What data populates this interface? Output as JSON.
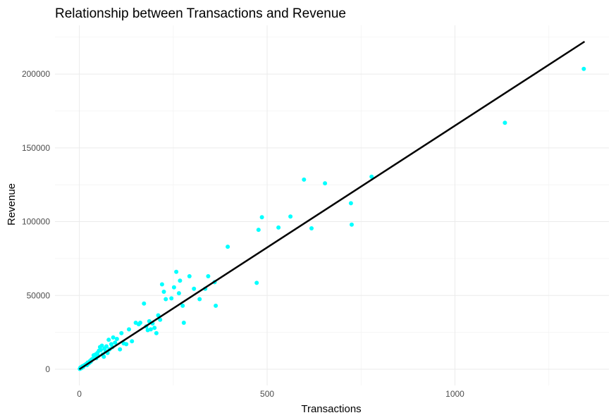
{
  "chart_data": {
    "type": "scatter",
    "title": "Relationship between Transactions and Revenue",
    "xlabel": "Transactions",
    "ylabel": "Revenue",
    "xlim": [
      -65,
      1410
    ],
    "ylim": [
      -11000,
      233000
    ],
    "x_ticks": [
      0,
      500,
      1000
    ],
    "y_ticks": [
      0,
      50000,
      100000,
      150000,
      200000
    ],
    "x_tick_labels": [
      "0",
      "500",
      "1000"
    ],
    "y_tick_labels": [
      "0",
      "50000",
      "100000",
      "150000",
      "200000"
    ],
    "grid": true,
    "legend": "none",
    "point_color": "#00ffff",
    "line_color": "#000000",
    "fit_line": {
      "x": [
        0,
        1345
      ],
      "y": [
        0,
        222000
      ]
    },
    "points": [
      {
        "x": 1,
        "y": 200
      },
      {
        "x": 3,
        "y": 1200
      },
      {
        "x": 5,
        "y": 700
      },
      {
        "x": 8,
        "y": 2000
      },
      {
        "x": 10,
        "y": 1500
      },
      {
        "x": 12,
        "y": 2500
      },
      {
        "x": 15,
        "y": 3000
      },
      {
        "x": 18,
        "y": 3500
      },
      {
        "x": 20,
        "y": 2800
      },
      {
        "x": 22,
        "y": 4500
      },
      {
        "x": 25,
        "y": 4000
      },
      {
        "x": 28,
        "y": 5500
      },
      {
        "x": 30,
        "y": 5000
      },
      {
        "x": 32,
        "y": 6500
      },
      {
        "x": 35,
        "y": 7000
      },
      {
        "x": 38,
        "y": 9500
      },
      {
        "x": 40,
        "y": 8000
      },
      {
        "x": 43,
        "y": 10000
      },
      {
        "x": 45,
        "y": 7500
      },
      {
        "x": 48,
        "y": 11000
      },
      {
        "x": 50,
        "y": 9000
      },
      {
        "x": 52,
        "y": 12500
      },
      {
        "x": 55,
        "y": 15000
      },
      {
        "x": 57,
        "y": 13000
      },
      {
        "x": 60,
        "y": 16000
      },
      {
        "x": 62,
        "y": 10000
      },
      {
        "x": 65,
        "y": 8500
      },
      {
        "x": 67,
        "y": 14000
      },
      {
        "x": 70,
        "y": 12000
      },
      {
        "x": 72,
        "y": 15500
      },
      {
        "x": 75,
        "y": 11000
      },
      {
        "x": 78,
        "y": 20000
      },
      {
        "x": 80,
        "y": 13500
      },
      {
        "x": 85,
        "y": 17000
      },
      {
        "x": 88,
        "y": 15000
      },
      {
        "x": 90,
        "y": 21500
      },
      {
        "x": 95,
        "y": 18000
      },
      {
        "x": 100,
        "y": 20500
      },
      {
        "x": 108,
        "y": 13500
      },
      {
        "x": 112,
        "y": 24500
      },
      {
        "x": 118,
        "y": 17500
      },
      {
        "x": 125,
        "y": 17000
      },
      {
        "x": 132,
        "y": 27000
      },
      {
        "x": 140,
        "y": 19000
      },
      {
        "x": 150,
        "y": 31500
      },
      {
        "x": 158,
        "y": 30500
      },
      {
        "x": 162,
        "y": 31500
      },
      {
        "x": 172,
        "y": 44500
      },
      {
        "x": 178,
        "y": 29000
      },
      {
        "x": 182,
        "y": 26500
      },
      {
        "x": 186,
        "y": 32500
      },
      {
        "x": 190,
        "y": 27000
      },
      {
        "x": 195,
        "y": 31000
      },
      {
        "x": 200,
        "y": 28000
      },
      {
        "x": 205,
        "y": 24500
      },
      {
        "x": 210,
        "y": 36500
      },
      {
        "x": 215,
        "y": 33500
      },
      {
        "x": 220,
        "y": 57500
      },
      {
        "x": 225,
        "y": 52500
      },
      {
        "x": 230,
        "y": 47500
      },
      {
        "x": 245,
        "y": 48000
      },
      {
        "x": 252,
        "y": 55500
      },
      {
        "x": 258,
        "y": 66000
      },
      {
        "x": 265,
        "y": 51500
      },
      {
        "x": 268,
        "y": 60000
      },
      {
        "x": 275,
        "y": 43000
      },
      {
        "x": 278,
        "y": 31500
      },
      {
        "x": 293,
        "y": 63000
      },
      {
        "x": 305,
        "y": 54500
      },
      {
        "x": 320,
        "y": 47500
      },
      {
        "x": 335,
        "y": 54500
      },
      {
        "x": 343,
        "y": 63000
      },
      {
        "x": 360,
        "y": 59000
      },
      {
        "x": 363,
        "y": 43000
      },
      {
        "x": 395,
        "y": 83000
      },
      {
        "x": 472,
        "y": 58500
      },
      {
        "x": 477,
        "y": 94500
      },
      {
        "x": 486,
        "y": 103000
      },
      {
        "x": 530,
        "y": 96000
      },
      {
        "x": 562,
        "y": 103500
      },
      {
        "x": 598,
        "y": 128500
      },
      {
        "x": 618,
        "y": 95500
      },
      {
        "x": 654,
        "y": 126000
      },
      {
        "x": 723,
        "y": 112500
      },
      {
        "x": 725,
        "y": 98000
      },
      {
        "x": 778,
        "y": 130500
      },
      {
        "x": 1133,
        "y": 167000
      },
      {
        "x": 1343,
        "y": 203500
      }
    ]
  }
}
